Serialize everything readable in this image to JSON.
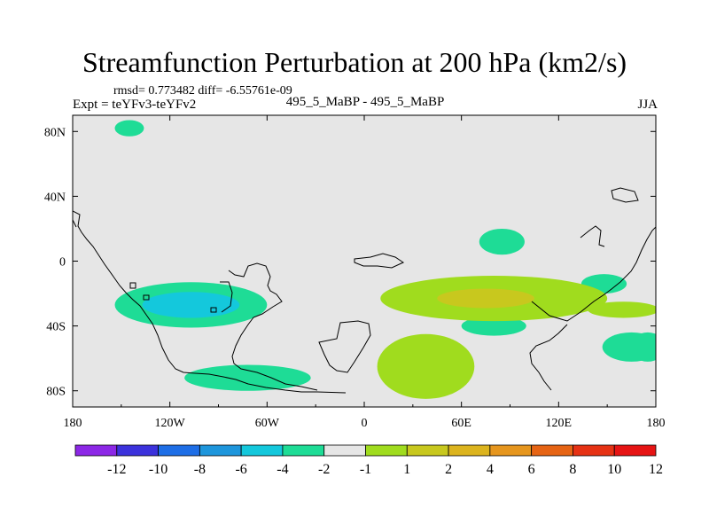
{
  "chart_data": {
    "type": "heatmap",
    "title": "Streamfunction Perturbation at 200 hPa (km2/s)",
    "stats_text": "rmsd= 0.773482 diff= -6.55761e-09",
    "left_label": "Expt = teYFv3-teYFv2",
    "center_label": "495_5_MaBP - 495_5_MaBP",
    "right_label": "JJA",
    "x_range": [
      -180,
      180
    ],
    "y_range": [
      -90,
      90
    ],
    "x_ticks": [
      {
        "value": -180,
        "label": "180"
      },
      {
        "value": -120,
        "label": "120W"
      },
      {
        "value": -60,
        "label": "60W"
      },
      {
        "value": 0,
        "label": "0"
      },
      {
        "value": 60,
        "label": "60E"
      },
      {
        "value": 120,
        "label": "120E"
      },
      {
        "value": 180,
        "label": "180"
      }
    ],
    "y_ticks": [
      {
        "value": 80,
        "label": "80N"
      },
      {
        "value": 40,
        "label": "40N"
      },
      {
        "value": 0,
        "label": "0"
      },
      {
        "value": -40,
        "label": "40S"
      },
      {
        "value": -80,
        "label": "80S"
      }
    ],
    "colorbar": {
      "labels": [
        "-12",
        "-10",
        "-8",
        "-6",
        "-4",
        "-2",
        "-1",
        "1",
        "2",
        "4",
        "6",
        "8",
        "10",
        "12"
      ],
      "colors": [
        "#8c28e6",
        "#3c32dc",
        "#1e6ee6",
        "#1e96dc",
        "#14c8dc",
        "#1edc96",
        "#e6e6e6",
        "#a0dc1e",
        "#c8c81e",
        "#dcb41e",
        "#e6961e",
        "#e66414",
        "#e63214",
        "#e61414"
      ]
    },
    "background_color": "#e6e6e6",
    "anomalies": [
      {
        "lon_center": -145,
        "lat_center": 82,
        "lon_radius": 9,
        "lat_radius": 5,
        "category": "-2 to -1",
        "color": "#1edc96"
      },
      {
        "lon_center": -107,
        "lat_center": -27,
        "lon_radius": 47,
        "lat_radius": 14,
        "category": "-2 to -1",
        "color": "#1edc96"
      },
      {
        "lon_center": -107,
        "lat_center": -27,
        "lon_radius": 30,
        "lat_radius": 8,
        "category": "-4 to -2",
        "color": "#14c8dc"
      },
      {
        "lon_center": 175,
        "lat_center": -53,
        "lon_radius": 11,
        "lat_radius": 9,
        "category": "-2 to -1",
        "color": "#1edc96"
      },
      {
        "lon_center": -72,
        "lat_center": -72,
        "lon_radius": 39,
        "lat_radius": 8,
        "category": "-2 to -1",
        "color": "#1edc96"
      },
      {
        "lon_center": 85,
        "lat_center": 12,
        "lon_radius": 14,
        "lat_radius": 8,
        "category": "-2 to -1",
        "color": "#1edc96"
      },
      {
        "lon_center": 148,
        "lat_center": -14,
        "lon_radius": 14,
        "lat_radius": 6,
        "category": "-2 to -1",
        "color": "#1edc96"
      },
      {
        "lon_center": 80,
        "lat_center": -40,
        "lon_radius": 20,
        "lat_radius": 6,
        "category": "-2 to -1",
        "color": "#1edc96"
      },
      {
        "lon_center": 165,
        "lat_center": -53,
        "lon_radius": 18,
        "lat_radius": 9,
        "category": "-2 to -1",
        "color": "#1edc96"
      },
      {
        "lon_center": 80,
        "lat_center": -23,
        "lon_radius": 70,
        "lat_radius": 14,
        "category": "1 to 2",
        "color": "#a0dc1e"
      },
      {
        "lon_center": 160,
        "lat_center": -30,
        "lon_radius": 22,
        "lat_radius": 5,
        "category": "1 to 2",
        "color": "#a0dc1e"
      },
      {
        "lon_center": 75,
        "lat_center": -23,
        "lon_radius": 30,
        "lat_radius": 6,
        "category": "2 to 4",
        "color": "#c8c81e"
      },
      {
        "lon_center": 38,
        "lat_center": -65,
        "lon_radius": 30,
        "lat_radius": 20,
        "category": "1 to 2",
        "color": "#a0dc1e"
      }
    ]
  }
}
